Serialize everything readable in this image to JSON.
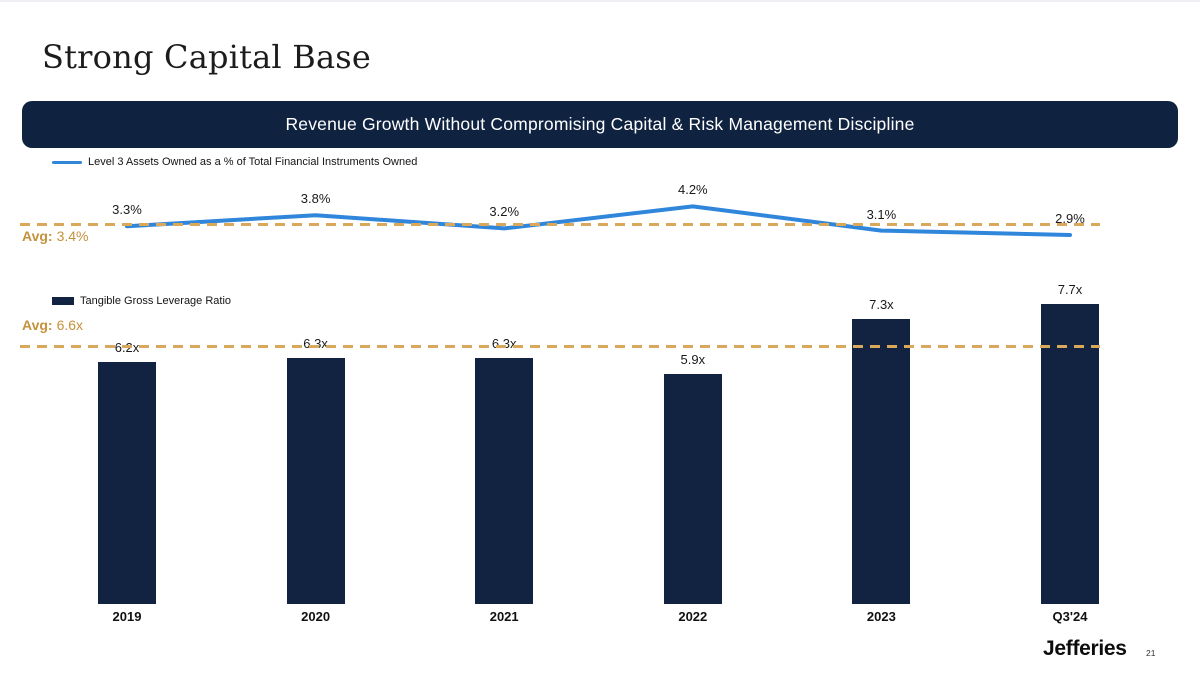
{
  "slide": {
    "title": "Strong Capital Base",
    "banner": "Revenue Growth Without Compromising Capital & Risk Management Discipline",
    "footer_logo": "Jefferies",
    "page_number": "21"
  },
  "colors": {
    "navy": "#112340",
    "banner_navy": "#0f2240",
    "line_blue": "#2f86db",
    "avg_dash_gold": "#d9a85a",
    "avg_text_gold": "#c6913c"
  },
  "chart_data": [
    {
      "type": "line",
      "legend": "Level 3 Assets Owned as a % of Total Financial Instruments Owned",
      "categories": [
        "2019",
        "2020",
        "2021",
        "2022",
        "2023",
        "Q3'24"
      ],
      "values": [
        3.3,
        3.8,
        3.2,
        4.2,
        3.1,
        2.9
      ],
      "labels": [
        "3.3%",
        "3.8%",
        "3.2%",
        "4.2%",
        "3.1%",
        "2.9%"
      ],
      "average": 3.4,
      "average_prefix": "Avg:",
      "average_value_label": "3.4%",
      "grid": false,
      "legend_position": "top-left",
      "x_axis_labels_shown": false
    },
    {
      "type": "bar",
      "legend": "Tangible Gross Leverage Ratio",
      "categories": [
        "2019",
        "2020",
        "2021",
        "2022",
        "2023",
        "Q3'24"
      ],
      "values": [
        6.2,
        6.3,
        6.3,
        5.9,
        7.3,
        7.7
      ],
      "labels": [
        "6.2x",
        "6.3x",
        "6.3x",
        "5.9x",
        "7.3x",
        "7.7x"
      ],
      "average": 6.6,
      "average_prefix": "Avg:",
      "average_value_label": "6.6x",
      "ylim": [
        0,
        8.5
      ],
      "grid": false,
      "legend_position": "top-left",
      "x_axis_labels_shown": true
    }
  ]
}
